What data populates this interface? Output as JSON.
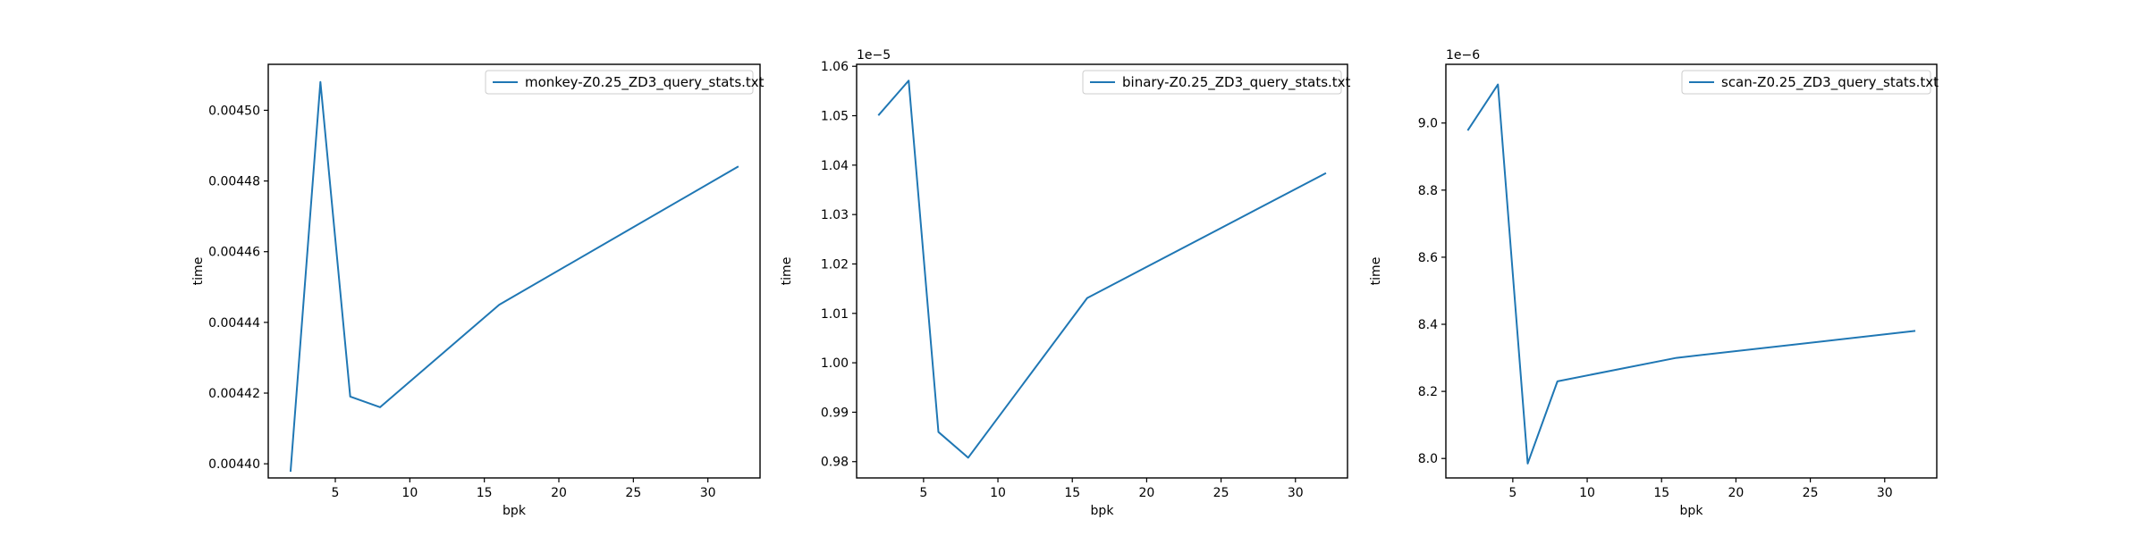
{
  "colors": {
    "series": "#1f77b4"
  },
  "chart_data": [
    {
      "type": "line",
      "xlabel": "bpk",
      "ylabel": "time",
      "offset_text": "",
      "xlim": [
        0.5,
        33.5
      ],
      "ylim": [
        0.004396,
        0.004513
      ],
      "xticks": [
        5,
        10,
        15,
        20,
        25,
        30
      ],
      "xtick_labels": [
        "5",
        "10",
        "15",
        "20",
        "25",
        "30"
      ],
      "yticks": [
        0.0044,
        0.00442,
        0.00444,
        0.00446,
        0.00448,
        0.0045
      ],
      "ytick_labels": [
        "0.00440",
        "0.00442",
        "0.00444",
        "0.00446",
        "0.00448",
        "0.00450"
      ],
      "legend_position": "upper right",
      "series": [
        {
          "name": "monkey-Z0.25_ZD3_query_stats.txt",
          "x": [
            2,
            4,
            6,
            8,
            16,
            32
          ],
          "y": [
            0.004398,
            0.004508,
            0.004419,
            0.004416,
            0.004445,
            0.004484
          ]
        }
      ]
    },
    {
      "type": "line",
      "xlabel": "bpk",
      "ylabel": "time",
      "offset_text": "1e−5",
      "xlim": [
        0.5,
        33.5
      ],
      "ylim": [
        0.9767,
        1.0604
      ],
      "xticks": [
        5,
        10,
        15,
        20,
        25,
        30
      ],
      "xtick_labels": [
        "5",
        "10",
        "15",
        "20",
        "25",
        "30"
      ],
      "yticks": [
        0.98,
        0.99,
        1.0,
        1.01,
        1.02,
        1.03,
        1.04,
        1.05,
        1.06
      ],
      "ytick_labels": [
        "0.98",
        "0.99",
        "1.00",
        "1.01",
        "1.02",
        "1.03",
        "1.04",
        "1.05",
        "1.06"
      ],
      "legend_position": "upper right",
      "series": [
        {
          "name": "binary-Z0.25_ZD3_query_stats.txt",
          "x": [
            2,
            4,
            6,
            8,
            16,
            32
          ],
          "y": [
            1.0502,
            1.0571,
            0.986,
            0.9808,
            1.0131,
            1.0383
          ]
        }
      ]
    },
    {
      "type": "line",
      "xlabel": "bpk",
      "ylabel": "time",
      "offset_text": "1e−6",
      "xlim": [
        0.5,
        33.5
      ],
      "ylim": [
        7.942,
        9.175
      ],
      "xticks": [
        5,
        10,
        15,
        20,
        25,
        30
      ],
      "xtick_labels": [
        "5",
        "10",
        "15",
        "20",
        "25",
        "30"
      ],
      "yticks": [
        8.0,
        8.2,
        8.4,
        8.6,
        8.8,
        9.0
      ],
      "ytick_labels": [
        "8.0",
        "8.2",
        "8.4",
        "8.6",
        "8.8",
        "9.0"
      ],
      "legend_position": "upper right",
      "series": [
        {
          "name": "scan-Z0.25_ZD3_query_stats.txt",
          "x": [
            2,
            4,
            6,
            8,
            16,
            32
          ],
          "y": [
            8.98,
            9.115,
            7.985,
            8.23,
            8.3,
            8.38
          ]
        }
      ]
    }
  ]
}
